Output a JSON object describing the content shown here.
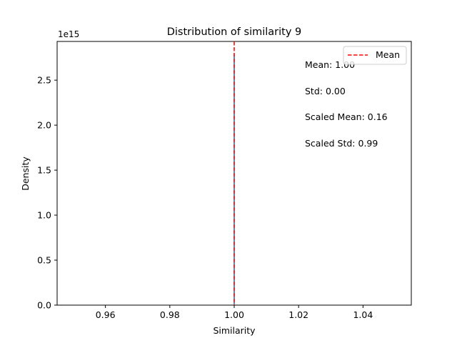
{
  "chart_data": {
    "type": "line",
    "title": "Distribution of similarity 9",
    "xlabel": "Similarity",
    "ylabel": "Density",
    "y_offset_label": "1e15",
    "xlim": [
      0.945,
      1.055
    ],
    "ylim": [
      0,
      2.93
    ],
    "x_ticks": [
      0.96,
      0.98,
      1.0,
      1.02,
      1.04
    ],
    "x_tick_labels": [
      "0.96",
      "0.98",
      "1.00",
      "1.02",
      "1.04"
    ],
    "y_ticks": [
      0.0,
      0.5,
      1.0,
      1.5,
      2.0,
      2.5
    ],
    "y_tick_labels": [
      "0.0",
      "0.5",
      "1.0",
      "1.5",
      "2.0",
      "2.5"
    ],
    "grid": false,
    "series": [
      {
        "x": [
          1.0,
          1.0
        ],
        "y": [
          0,
          2.79
        ],
        "color": "#1f77b4"
      }
    ],
    "mean_line": {
      "name": "Mean",
      "x": 1.0,
      "color": "#ff0000",
      "style": "dashed"
    },
    "legend": {
      "placement": "top-right",
      "entries": [
        "Mean"
      ]
    },
    "annotations": [
      "Mean: 1.00",
      "Std: 0.00",
      "Scaled Mean: 0.16",
      "Scaled Std: 0.99"
    ]
  }
}
